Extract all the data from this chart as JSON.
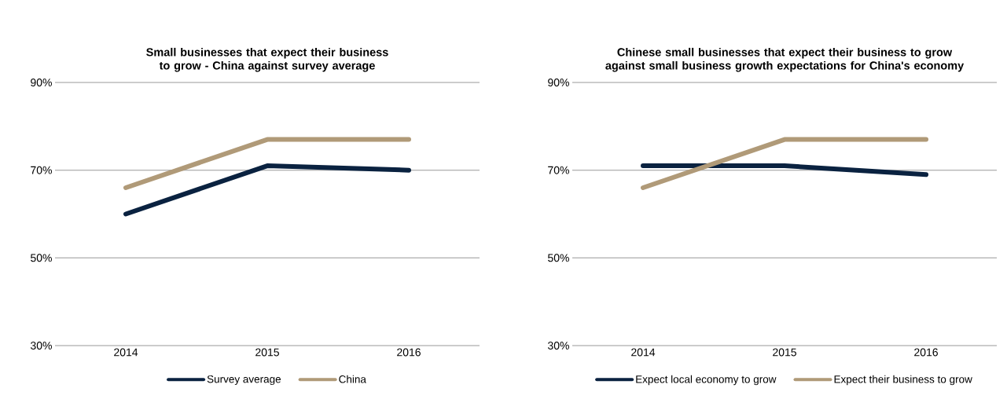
{
  "chart_data": [
    {
      "type": "line",
      "title": "Small businesses that expect their business to grow - China against survey average",
      "categories": [
        "2014",
        "2015",
        "2016"
      ],
      "series": [
        {
          "name": "Survey average",
          "color": "#0a2240",
          "values": [
            60,
            71,
            70
          ]
        },
        {
          "name": "China",
          "color": "#b09a78",
          "values": [
            66,
            77,
            77
          ]
        }
      ],
      "ylim": [
        30,
        90
      ],
      "yticks": [
        {
          "value": 30,
          "label": "30%"
        },
        {
          "value": 50,
          "label": "50%"
        },
        {
          "value": 70,
          "label": "70%"
        },
        {
          "value": 90,
          "label": "90%"
        }
      ],
      "grid": "y",
      "legend": "bottom",
      "marker": "none",
      "line_style": "solid"
    },
    {
      "type": "line",
      "title": "Chinese small businesses that expect their business to grow against small business growth expectations for China's economy",
      "categories": [
        "2014",
        "2015",
        "2016"
      ],
      "series": [
        {
          "name": "Expect local economy to grow",
          "color": "#0a2240",
          "values": [
            71,
            71,
            69
          ]
        },
        {
          "name": "Expect their business to grow",
          "color": "#b09a78",
          "values": [
            66,
            77,
            77
          ]
        }
      ],
      "ylim": [
        30,
        90
      ],
      "yticks": [
        {
          "value": 30,
          "label": "30%"
        },
        {
          "value": 50,
          "label": "50%"
        },
        {
          "value": 70,
          "label": "70%"
        },
        {
          "value": 90,
          "label": "90%"
        }
      ],
      "grid": "y",
      "legend": "bottom",
      "marker": "none",
      "line_style": "solid"
    }
  ]
}
